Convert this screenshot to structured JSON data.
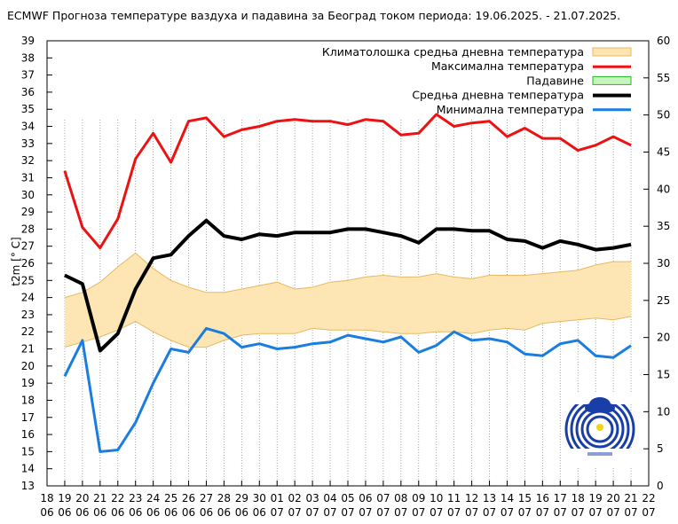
{
  "chart_data": {
    "type": "line",
    "title": "ECMWF Прогноза температуре ваздуха и падавина за Београд током периода: 19.06.2025. - 21.07.2025.",
    "ylabel": "t2m [° C]",
    "ylim": [
      13,
      39
    ],
    "y2lim": [
      0,
      60
    ],
    "yticks": [
      "13",
      "14",
      "15",
      "16",
      "17",
      "18",
      "19",
      "20",
      "21",
      "22",
      "23",
      "24",
      "25",
      "26",
      "27",
      "28",
      "29",
      "30",
      "31",
      "32",
      "33",
      "34",
      "35",
      "36",
      "37",
      "38",
      "39"
    ],
    "y2ticks": [
      "0",
      "5",
      "10",
      "15",
      "20",
      "25",
      "30",
      "35",
      "40",
      "45",
      "50",
      "55",
      "60"
    ],
    "x_tick_days": [
      "18",
      "19",
      "20",
      "21",
      "22",
      "23",
      "24",
      "25",
      "26",
      "27",
      "28",
      "29",
      "30",
      "01",
      "02",
      "03",
      "04",
      "05",
      "06",
      "07",
      "08",
      "09",
      "10",
      "11",
      "12",
      "13",
      "14",
      "15",
      "16",
      "17",
      "18",
      "19",
      "20",
      "21",
      "22"
    ],
    "x_tick_months": [
      "06",
      "06",
      "06",
      "06",
      "06",
      "06",
      "06",
      "06",
      "06",
      "06",
      "06",
      "06",
      "06",
      "07",
      "07",
      "07",
      "07",
      "07",
      "07",
      "07",
      "07",
      "07",
      "07",
      "07",
      "07",
      "07",
      "07",
      "07",
      "07",
      "07",
      "07",
      "07",
      "07",
      "07",
      "07"
    ],
    "grid": "vertical dotted",
    "legend_position": "top-right",
    "colors": {
      "clim_fill": "#fde5b4",
      "clim_edge": "#e8b860",
      "max": "#ee1111",
      "precip_fill": "#c8f4c0",
      "precip_edge": "#22bb22",
      "mean": "#000000",
      "min": "#1a7de0"
    },
    "series": [
      {
        "name": "Климатолошка средња дневна температура",
        "kind": "band",
        "x": [
          19,
          20,
          21,
          22,
          23,
          24,
          25,
          26,
          27,
          28,
          29,
          30,
          31,
          32,
          33,
          34,
          35,
          36,
          37,
          38,
          39,
          40,
          41,
          42,
          43,
          44,
          45,
          46,
          47,
          48,
          49,
          50,
          51
        ],
        "upper": [
          24.0,
          24.3,
          24.9,
          25.8,
          26.6,
          25.7,
          25.0,
          24.6,
          24.3,
          24.3,
          24.5,
          24.7,
          24.9,
          24.5,
          24.6,
          24.9,
          25.0,
          25.2,
          25.3,
          25.2,
          25.2,
          25.4,
          25.2,
          25.1,
          25.3,
          25.3,
          25.3,
          25.4,
          25.5,
          25.6,
          25.9,
          26.1,
          26.1
        ],
        "lower": [
          21.1,
          21.4,
          21.7,
          22.1,
          22.6,
          22.0,
          21.5,
          21.1,
          21.1,
          21.5,
          21.8,
          21.9,
          21.9,
          21.9,
          22.2,
          22.1,
          22.1,
          22.1,
          22.0,
          21.9,
          21.9,
          22.0,
          22.0,
          21.9,
          22.1,
          22.2,
          22.1,
          22.5,
          22.6,
          22.7,
          22.8,
          22.7,
          22.9
        ]
      },
      {
        "name": "Максимална температура",
        "x": [
          19,
          20,
          21,
          22,
          23,
          24,
          25,
          26,
          27,
          28,
          29,
          30,
          31,
          32,
          33,
          34,
          35,
          36,
          37,
          38,
          39,
          40,
          41,
          42,
          43,
          44,
          45,
          46,
          47,
          48,
          49,
          50,
          51
        ],
        "values": [
          31.4,
          28.1,
          26.9,
          28.6,
          32.1,
          33.6,
          31.9,
          34.3,
          34.5,
          33.4,
          33.8,
          34.0,
          34.3,
          34.4,
          34.3,
          34.3,
          34.1,
          34.4,
          34.3,
          33.5,
          33.6,
          34.7,
          34.0,
          34.2,
          34.3,
          33.4,
          33.9,
          33.3,
          33.3,
          32.6,
          32.9,
          33.4,
          32.9
        ]
      },
      {
        "name": "Падавине",
        "axis": "right",
        "x": [],
        "values": []
      },
      {
        "name": "Средња дневна температура",
        "x": [
          19,
          20,
          21,
          22,
          23,
          24,
          25,
          26,
          27,
          28,
          29,
          30,
          31,
          32,
          33,
          34,
          35,
          36,
          37,
          38,
          39,
          40,
          41,
          42,
          43,
          44,
          45,
          46,
          47,
          48,
          49,
          50,
          51
        ],
        "values": [
          25.3,
          24.8,
          20.9,
          21.9,
          24.5,
          26.3,
          26.5,
          27.6,
          28.5,
          27.6,
          27.4,
          27.7,
          27.6,
          27.8,
          27.8,
          27.8,
          28.0,
          28.0,
          27.8,
          27.6,
          27.2,
          28.0,
          28.0,
          27.9,
          27.9,
          27.4,
          27.3,
          26.9,
          27.3,
          27.1,
          26.8,
          26.9,
          27.1
        ]
      },
      {
        "name": "Минимална температура",
        "x": [
          19,
          20,
          21,
          22,
          23,
          24,
          25,
          26,
          27,
          28,
          29,
          30,
          31,
          32,
          33,
          34,
          35,
          36,
          37,
          38,
          39,
          40,
          41,
          42,
          43,
          44,
          45,
          46,
          47,
          48,
          49,
          50,
          51
        ],
        "values": [
          19.4,
          21.5,
          15.0,
          15.1,
          16.7,
          19.0,
          21.0,
          20.8,
          22.2,
          21.9,
          21.1,
          21.3,
          21.0,
          21.1,
          21.3,
          21.4,
          21.8,
          21.6,
          21.4,
          21.7,
          20.8,
          21.2,
          22.0,
          21.5,
          21.6,
          21.4,
          20.7,
          20.6,
          21.3,
          21.5,
          20.6,
          20.5,
          21.2
        ]
      }
    ]
  }
}
